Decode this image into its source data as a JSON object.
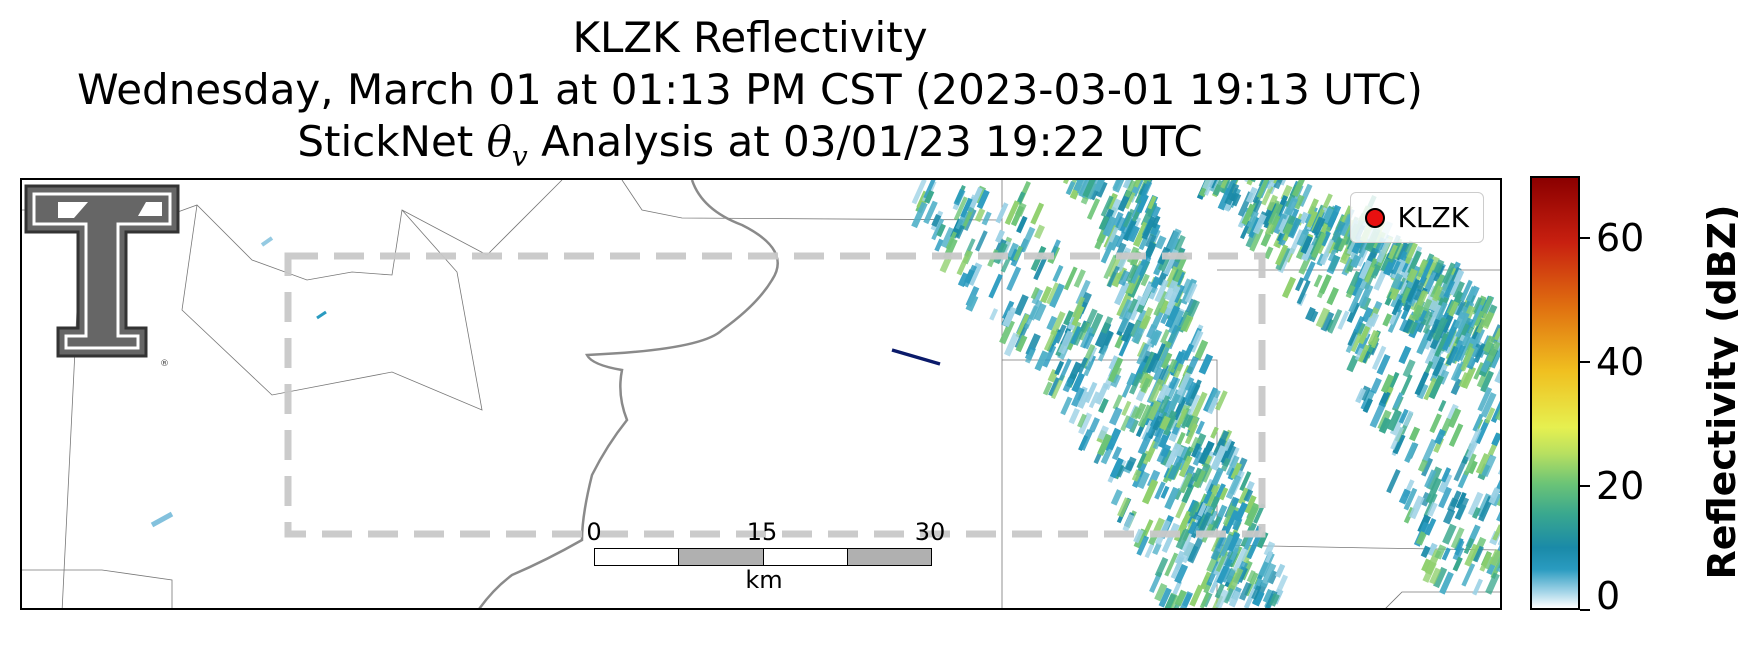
{
  "title": {
    "line1": "KLZK Reflectivity",
    "line2": "Wednesday, March 01 at 01:13 PM CST (2023-03-01 19:13 UTC)",
    "line3_pre": "StickNet ",
    "line3_symbol": "θ",
    "line3_sub": "v",
    "line3_post": " Analysis at 03/01/23 19:22 UTC"
  },
  "legend": {
    "label": "KLZK",
    "marker_color": "#e81010"
  },
  "logo": {
    "name": "Texas Tech Double T",
    "registered": "®"
  },
  "scalebar": {
    "ticks": [
      "0",
      "15",
      "30"
    ],
    "unit": "km"
  },
  "colorbar": {
    "title": "Reflectivity (dBZ)",
    "ticks": [
      "0",
      "20",
      "40",
      "60"
    ],
    "min": 0,
    "max": 70
  },
  "colors": {
    "analysis_box": "#c8c8c8",
    "river": "#8a8a8a",
    "boundaries": "#777777",
    "radar_low": "#2a9bc0",
    "radar_mid": "#6cc476",
    "marker_line": "#0a1a6a"
  }
}
